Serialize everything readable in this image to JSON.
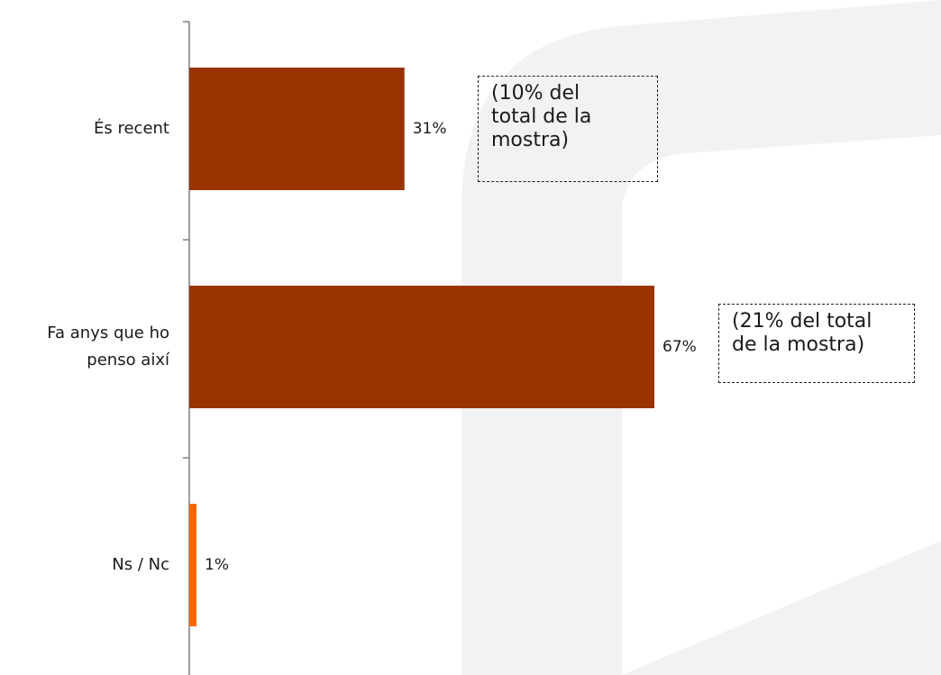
{
  "chart_data": {
    "type": "bar",
    "orientation": "horizontal",
    "categories": [
      "És recent",
      "Fa anys que ho\npenso així",
      "Ns / Nc"
    ],
    "values": [
      31,
      67,
      1
    ],
    "value_labels": [
      "31%",
      "67%",
      "1%"
    ],
    "xlim": [
      0,
      100
    ],
    "bar_colors": [
      "#993300",
      "#993300",
      "#FF6600"
    ],
    "annotations": [
      {
        "category": "És recent",
        "text": "(10% del\ntotal de la\nmostra)"
      },
      {
        "category": "Fa anys que ho\npenso així",
        "text": "(21% del total\nde la mostra)"
      }
    ],
    "grid": false,
    "legend": "none"
  },
  "colors": {
    "primary_bar": "#993300",
    "accent_bar": "#FF6600",
    "watermark": "#f1f1f1"
  }
}
